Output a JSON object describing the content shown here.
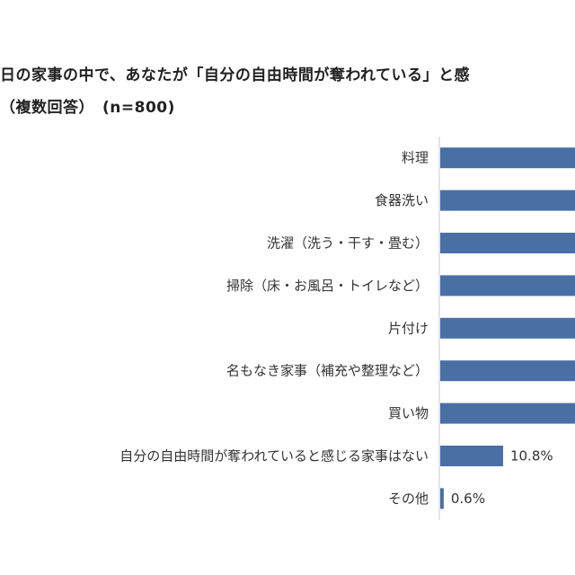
{
  "chart_data": {
    "type": "bar",
    "orientation": "horizontal",
    "title_line1": "日の家事の中で、あなたが「自分の自由時間が奪われている」と感",
    "title_line2": "（複数回答）　(n=800)",
    "categories": [
      "料理",
      "食器洗い",
      "洗濯（洗う・干す・畳む）",
      "掃除（床・お風呂・トイレなど）",
      "片付け",
      "名もなき家事（補充や整理など）",
      "買い物",
      "自分の自由時間が奪われていると感じる家事はない",
      "その他"
    ],
    "values": [
      null,
      null,
      null,
      null,
      null,
      null,
      null,
      10.8,
      0.6
    ],
    "data_labels": [
      "",
      "",
      "",
      "",
      "",
      "",
      "",
      "10.8%",
      "0.6%"
    ],
    "bar_color": "#4a6fa5",
    "axis_color": "#c8c8c8",
    "grid": false,
    "legend": "none"
  }
}
